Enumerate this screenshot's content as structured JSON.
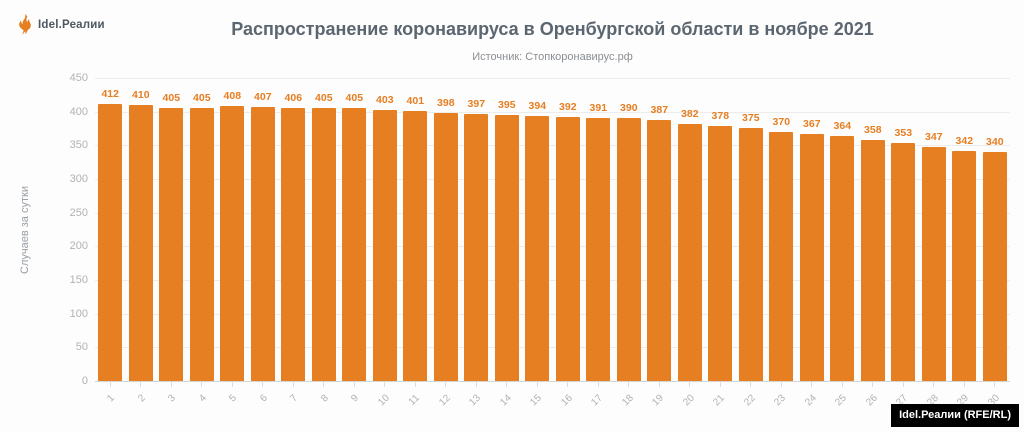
{
  "logo": {
    "brand": "Idel.Реалии"
  },
  "attribution": "Idel.Реалии (RFE/RL)",
  "chart_data": {
    "type": "bar",
    "title": "Распространение коронавируса в Оренбургской области в ноябре 2021",
    "subtitle": "Источник: Стопкоронавирус.рф",
    "ylabel": "Случаев за сутки",
    "xlabel": "",
    "categories": [
      "1",
      "2",
      "3",
      "4",
      "5",
      "6",
      "7",
      "8",
      "9",
      "10",
      "11",
      "12",
      "13",
      "14",
      "15",
      "16",
      "17",
      "18",
      "19",
      "20",
      "21",
      "22",
      "23",
      "24",
      "25",
      "26",
      "27",
      "28",
      "29",
      "30"
    ],
    "values": [
      412,
      410,
      405,
      405,
      408,
      407,
      406,
      405,
      405,
      403,
      401,
      398,
      397,
      395,
      394,
      392,
      391,
      390,
      387,
      382,
      378,
      375,
      370,
      367,
      364,
      358,
      353,
      347,
      342,
      340
    ],
    "ylim": [
      0,
      450
    ],
    "yticks": [
      0,
      50,
      100,
      150,
      200,
      250,
      300,
      350,
      400,
      450
    ],
    "grid": true,
    "legend": null,
    "bar_color": "#E67E22",
    "value_label_color": "#E67E22",
    "axis_label_color": "#b2b2b2"
  }
}
